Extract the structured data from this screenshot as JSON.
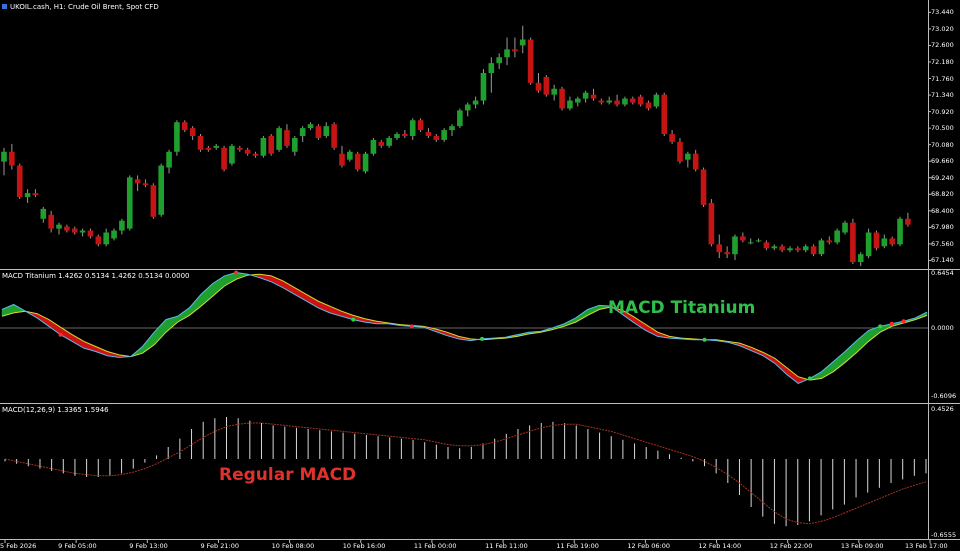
{
  "main": {
    "symbol_info": "UKOIL.cash, H1:  Crude Oil Brent, Spot CFD",
    "price_axis": [
      "73.440",
      "73.020",
      "72.600",
      "72.180",
      "71.760",
      "71.340",
      "70.920",
      "70.500",
      "70.080",
      "69.660",
      "69.240",
      "68.820",
      "68.400",
      "67.980",
      "67.560",
      "67.140"
    ],
    "ohlc": [
      {
        "o": 69.65,
        "h": 70.0,
        "l": 69.3,
        "c": 69.9
      },
      {
        "o": 69.9,
        "h": 70.1,
        "l": 69.45,
        "c": 69.55
      },
      {
        "o": 69.55,
        "h": 69.6,
        "l": 68.7,
        "c": 68.75
      },
      {
        "o": 68.75,
        "h": 68.95,
        "l": 68.6,
        "c": 68.85
      },
      {
        "o": 68.85,
        "h": 68.95,
        "l": 68.75,
        "c": 68.8
      },
      {
        "o": 68.2,
        "h": 68.5,
        "l": 68.1,
        "c": 68.45
      },
      {
        "o": 68.3,
        "h": 68.4,
        "l": 67.85,
        "c": 67.95
      },
      {
        "o": 67.95,
        "h": 68.1,
        "l": 67.8,
        "c": 68.05
      },
      {
        "o": 68.0,
        "h": 68.05,
        "l": 67.85,
        "c": 67.9
      },
      {
        "o": 67.95,
        "h": 68.0,
        "l": 67.8,
        "c": 67.85
      },
      {
        "o": 67.85,
        "h": 67.95,
        "l": 67.75,
        "c": 67.9
      },
      {
        "o": 67.9,
        "h": 67.95,
        "l": 67.7,
        "c": 67.75
      },
      {
        "o": 67.75,
        "h": 67.8,
        "l": 67.5,
        "c": 67.55
      },
      {
        "o": 67.55,
        "h": 67.95,
        "l": 67.5,
        "c": 67.85
      },
      {
        "o": 67.7,
        "h": 67.95,
        "l": 67.65,
        "c": 67.9
      },
      {
        "o": 67.9,
        "h": 68.2,
        "l": 67.8,
        "c": 68.15
      },
      {
        "o": 67.95,
        "h": 69.3,
        "l": 67.9,
        "c": 69.25
      },
      {
        "o": 69.2,
        "h": 69.3,
        "l": 68.9,
        "c": 69.1
      },
      {
        "o": 69.1,
        "h": 69.2,
        "l": 69.0,
        "c": 69.05
      },
      {
        "o": 69.05,
        "h": 69.1,
        "l": 68.2,
        "c": 68.25
      },
      {
        "o": 68.3,
        "h": 69.6,
        "l": 68.25,
        "c": 69.55
      },
      {
        "o": 69.5,
        "h": 69.95,
        "l": 69.35,
        "c": 69.9
      },
      {
        "o": 69.9,
        "h": 70.7,
        "l": 69.8,
        "c": 70.65
      },
      {
        "o": 70.65,
        "h": 70.7,
        "l": 70.4,
        "c": 70.45
      },
      {
        "o": 70.5,
        "h": 70.55,
        "l": 70.2,
        "c": 70.3
      },
      {
        "o": 70.3,
        "h": 70.35,
        "l": 69.9,
        "c": 69.95
      },
      {
        "o": 70.0,
        "h": 70.05,
        "l": 69.9,
        "c": 69.95
      },
      {
        "o": 70.0,
        "h": 70.1,
        "l": 69.95,
        "c": 70.05
      },
      {
        "o": 70.0,
        "h": 70.05,
        "l": 69.4,
        "c": 69.45
      },
      {
        "o": 69.6,
        "h": 70.1,
        "l": 69.55,
        "c": 70.05
      },
      {
        "o": 70.0,
        "h": 70.05,
        "l": 69.9,
        "c": 69.95
      },
      {
        "o": 69.95,
        "h": 70.0,
        "l": 69.8,
        "c": 69.85
      },
      {
        "o": 69.85,
        "h": 69.9,
        "l": 69.75,
        "c": 69.8
      },
      {
        "o": 69.8,
        "h": 70.3,
        "l": 69.75,
        "c": 70.25
      },
      {
        "o": 70.3,
        "h": 70.35,
        "l": 69.8,
        "c": 69.85
      },
      {
        "o": 69.95,
        "h": 70.55,
        "l": 69.9,
        "c": 70.5
      },
      {
        "o": 70.45,
        "h": 70.6,
        "l": 70.0,
        "c": 70.05
      },
      {
        "o": 69.9,
        "h": 70.3,
        "l": 69.8,
        "c": 70.25
      },
      {
        "o": 70.3,
        "h": 70.55,
        "l": 70.15,
        "c": 70.5
      },
      {
        "o": 70.5,
        "h": 70.65,
        "l": 70.45,
        "c": 70.6
      },
      {
        "o": 70.55,
        "h": 70.6,
        "l": 70.2,
        "c": 70.25
      },
      {
        "o": 70.3,
        "h": 70.65,
        "l": 70.25,
        "c": 70.55
      },
      {
        "o": 70.6,
        "h": 70.65,
        "l": 69.95,
        "c": 70.0
      },
      {
        "o": 69.85,
        "h": 70.05,
        "l": 69.5,
        "c": 69.55
      },
      {
        "o": 69.7,
        "h": 69.95,
        "l": 69.65,
        "c": 69.9
      },
      {
        "o": 69.85,
        "h": 69.9,
        "l": 69.4,
        "c": 69.45
      },
      {
        "o": 69.4,
        "h": 69.9,
        "l": 69.35,
        "c": 69.85
      },
      {
        "o": 69.85,
        "h": 70.25,
        "l": 69.8,
        "c": 70.2
      },
      {
        "o": 70.15,
        "h": 70.2,
        "l": 70.0,
        "c": 70.05
      },
      {
        "o": 70.05,
        "h": 70.3,
        "l": 70.0,
        "c": 70.25
      },
      {
        "o": 70.25,
        "h": 70.4,
        "l": 70.2,
        "c": 70.35
      },
      {
        "o": 70.35,
        "h": 70.45,
        "l": 70.25,
        "c": 70.3
      },
      {
        "o": 70.3,
        "h": 70.75,
        "l": 70.2,
        "c": 70.7
      },
      {
        "o": 70.7,
        "h": 70.75,
        "l": 70.4,
        "c": 70.45
      },
      {
        "o": 70.4,
        "h": 70.5,
        "l": 70.25,
        "c": 70.3
      },
      {
        "o": 70.3,
        "h": 70.35,
        "l": 70.15,
        "c": 70.2
      },
      {
        "o": 70.2,
        "h": 70.5,
        "l": 70.15,
        "c": 70.45
      },
      {
        "o": 70.45,
        "h": 70.6,
        "l": 70.3,
        "c": 70.55
      },
      {
        "o": 70.55,
        "h": 71.0,
        "l": 70.5,
        "c": 70.95
      },
      {
        "o": 70.95,
        "h": 71.15,
        "l": 70.8,
        "c": 71.1
      },
      {
        "o": 71.1,
        "h": 71.3,
        "l": 71.0,
        "c": 71.2
      },
      {
        "o": 71.2,
        "h": 72.0,
        "l": 71.1,
        "c": 71.9
      },
      {
        "o": 71.9,
        "h": 72.3,
        "l": 71.4,
        "c": 72.15
      },
      {
        "o": 72.15,
        "h": 72.4,
        "l": 72.0,
        "c": 72.3
      },
      {
        "o": 72.3,
        "h": 72.8,
        "l": 72.1,
        "c": 72.5
      },
      {
        "o": 72.5,
        "h": 72.8,
        "l": 72.3,
        "c": 72.45
      },
      {
        "o": 72.6,
        "h": 73.1,
        "l": 72.4,
        "c": 72.75
      },
      {
        "o": 72.75,
        "h": 72.8,
        "l": 71.6,
        "c": 71.65
      },
      {
        "o": 71.65,
        "h": 71.9,
        "l": 71.4,
        "c": 71.45
      },
      {
        "o": 71.8,
        "h": 71.85,
        "l": 71.3,
        "c": 71.35
      },
      {
        "o": 71.35,
        "h": 71.6,
        "l": 71.2,
        "c": 71.5
      },
      {
        "o": 71.5,
        "h": 71.55,
        "l": 70.95,
        "c": 71.0
      },
      {
        "o": 71.0,
        "h": 71.3,
        "l": 70.95,
        "c": 71.2
      },
      {
        "o": 71.15,
        "h": 71.3,
        "l": 71.05,
        "c": 71.25
      },
      {
        "o": 71.25,
        "h": 71.45,
        "l": 71.15,
        "c": 71.4
      },
      {
        "o": 71.35,
        "h": 71.5,
        "l": 71.2,
        "c": 71.25
      },
      {
        "o": 71.2,
        "h": 71.25,
        "l": 71.1,
        "c": 71.15
      },
      {
        "o": 71.15,
        "h": 71.3,
        "l": 71.1,
        "c": 71.2
      },
      {
        "o": 71.2,
        "h": 71.35,
        "l": 71.05,
        "c": 71.1
      },
      {
        "o": 71.1,
        "h": 71.3,
        "l": 71.05,
        "c": 71.25
      },
      {
        "o": 71.25,
        "h": 71.3,
        "l": 71.1,
        "c": 71.15
      },
      {
        "o": 71.3,
        "h": 71.35,
        "l": 71.05,
        "c": 71.1
      },
      {
        "o": 71.15,
        "h": 71.2,
        "l": 70.95,
        "c": 71.0
      },
      {
        "o": 71.05,
        "h": 71.4,
        "l": 71.0,
        "c": 71.35
      },
      {
        "o": 71.35,
        "h": 71.4,
        "l": 70.3,
        "c": 70.35
      },
      {
        "o": 70.35,
        "h": 70.45,
        "l": 70.1,
        "c": 70.15
      },
      {
        "o": 70.15,
        "h": 70.25,
        "l": 69.6,
        "c": 69.65
      },
      {
        "o": 69.7,
        "h": 69.9,
        "l": 69.5,
        "c": 69.85
      },
      {
        "o": 69.85,
        "h": 69.95,
        "l": 69.4,
        "c": 69.45
      },
      {
        "o": 69.45,
        "h": 69.5,
        "l": 68.5,
        "c": 68.55
      },
      {
        "o": 68.6,
        "h": 68.7,
        "l": 67.5,
        "c": 67.55
      },
      {
        "o": 67.55,
        "h": 67.8,
        "l": 67.2,
        "c": 67.35
      },
      {
        "o": 67.35,
        "h": 67.5,
        "l": 67.2,
        "c": 67.3
      },
      {
        "o": 67.3,
        "h": 67.8,
        "l": 67.15,
        "c": 67.75
      },
      {
        "o": 67.75,
        "h": 67.85,
        "l": 67.6,
        "c": 67.65
      },
      {
        "o": 67.6,
        "h": 67.7,
        "l": 67.55,
        "c": 67.6
      },
      {
        "o": 67.65,
        "h": 67.7,
        "l": 67.6,
        "c": 67.65
      },
      {
        "o": 67.6,
        "h": 67.65,
        "l": 67.4,
        "c": 67.45
      },
      {
        "o": 67.45,
        "h": 67.55,
        "l": 67.4,
        "c": 67.5
      },
      {
        "o": 67.5,
        "h": 67.55,
        "l": 67.35,
        "c": 67.4
      },
      {
        "o": 67.4,
        "h": 67.5,
        "l": 67.35,
        "c": 67.45
      },
      {
        "o": 67.45,
        "h": 67.5,
        "l": 67.35,
        "c": 67.4
      },
      {
        "o": 67.4,
        "h": 67.55,
        "l": 67.35,
        "c": 67.5
      },
      {
        "o": 67.5,
        "h": 67.55,
        "l": 67.25,
        "c": 67.3
      },
      {
        "o": 67.3,
        "h": 67.7,
        "l": 67.25,
        "c": 67.65
      },
      {
        "o": 67.65,
        "h": 67.75,
        "l": 67.55,
        "c": 67.6
      },
      {
        "o": 67.6,
        "h": 67.95,
        "l": 67.55,
        "c": 67.9
      },
      {
        "o": 67.85,
        "h": 68.15,
        "l": 67.8,
        "c": 68.1
      },
      {
        "o": 68.1,
        "h": 68.2,
        "l": 67.05,
        "c": 67.1
      },
      {
        "o": 67.1,
        "h": 67.35,
        "l": 67.0,
        "c": 67.3
      },
      {
        "o": 67.25,
        "h": 67.95,
        "l": 67.2,
        "c": 67.85
      },
      {
        "o": 67.85,
        "h": 67.9,
        "l": 67.4,
        "c": 67.45
      },
      {
        "o": 67.5,
        "h": 67.8,
        "l": 67.45,
        "c": 67.7
      },
      {
        "o": 67.7,
        "h": 67.75,
        "l": 67.5,
        "c": 67.55
      },
      {
        "o": 67.55,
        "h": 68.25,
        "l": 67.5,
        "c": 68.2
      },
      {
        "o": 68.2,
        "h": 68.35,
        "l": 68.0,
        "c": 68.05
      }
    ]
  },
  "titanium": {
    "header": "MACD Titanium 1.4262 0.5134 1.4262 0.5134 0.0000",
    "axis": [
      "0.6454",
      "0.0000",
      "-0.6096"
    ],
    "annotation": "MACD Titanium",
    "colors": {
      "bull": "#1fa02e",
      "bear": "#cc1212",
      "fast": "#5ab8e8",
      "slow": "#d8d830"
    },
    "fast": [
      0.22,
      0.28,
      0.2,
      0.12,
      0.02,
      -0.08,
      -0.16,
      -0.24,
      -0.28,
      -0.33,
      -0.35,
      -0.34,
      -0.22,
      -0.05,
      0.1,
      0.14,
      0.24,
      0.4,
      0.53,
      0.62,
      0.66,
      0.64,
      0.6,
      0.55,
      0.48,
      0.4,
      0.32,
      0.24,
      0.18,
      0.14,
      0.1,
      0.07,
      0.05,
      0.05,
      0.03,
      0.02,
      0.01,
      -0.04,
      -0.09,
      -0.13,
      -0.15,
      -0.13,
      -0.12,
      -0.11,
      -0.08,
      -0.05,
      -0.04,
      0.0,
      0.05,
      0.12,
      0.22,
      0.27,
      0.26,
      0.16,
      0.06,
      -0.03,
      -0.1,
      -0.12,
      -0.13,
      -0.14,
      -0.14,
      -0.15,
      -0.17,
      -0.21,
      -0.27,
      -0.33,
      -0.42,
      -0.55,
      -0.66,
      -0.6,
      -0.52,
      -0.4,
      -0.28,
      -0.15,
      -0.03,
      0.02,
      0.05,
      0.08,
      0.12,
      0.19
    ],
    "slow": [
      0.14,
      0.18,
      0.2,
      0.17,
      0.1,
      0.01,
      -0.08,
      -0.16,
      -0.22,
      -0.28,
      -0.32,
      -0.34,
      -0.3,
      -0.2,
      -0.05,
      0.07,
      0.15,
      0.26,
      0.38,
      0.5,
      0.58,
      0.63,
      0.64,
      0.62,
      0.56,
      0.48,
      0.4,
      0.32,
      0.26,
      0.2,
      0.15,
      0.11,
      0.08,
      0.06,
      0.04,
      0.03,
      0.02,
      -0.01,
      -0.05,
      -0.1,
      -0.13,
      -0.14,
      -0.13,
      -0.12,
      -0.1,
      -0.07,
      -0.05,
      -0.02,
      0.02,
      0.07,
      0.15,
      0.22,
      0.25,
      0.21,
      0.13,
      0.04,
      -0.05,
      -0.1,
      -0.12,
      -0.13,
      -0.14,
      -0.14,
      -0.16,
      -0.18,
      -0.23,
      -0.29,
      -0.36,
      -0.47,
      -0.58,
      -0.62,
      -0.6,
      -0.52,
      -0.41,
      -0.29,
      -0.16,
      -0.05,
      0.02,
      0.06,
      0.1,
      0.15
    ],
    "dots": [
      {
        "i": 5,
        "color": "red"
      },
      {
        "i": 20,
        "color": "red"
      },
      {
        "i": 30,
        "color": "green"
      },
      {
        "i": 35,
        "color": "red"
      },
      {
        "i": 41,
        "color": "green"
      },
      {
        "i": 52,
        "color": "red"
      },
      {
        "i": 60,
        "color": "green"
      },
      {
        "i": 69,
        "color": "green"
      },
      {
        "i": 75,
        "color": "green"
      },
      {
        "i": 76,
        "color": "red"
      },
      {
        "i": 77,
        "color": "red"
      }
    ]
  },
  "macd": {
    "header": "MACD(12,26,9) 1.3365 1.5946",
    "axis": [
      "0.4526",
      "-0.6555"
    ],
    "annotation": "Regular MACD",
    "colors": {
      "hist": "#d8d8d8",
      "signal": "#a3321f"
    },
    "hist": [
      -0.02,
      -0.04,
      -0.06,
      -0.08,
      -0.1,
      -0.12,
      -0.14,
      -0.15,
      -0.15,
      -0.14,
      -0.12,
      -0.08,
      -0.03,
      0.03,
      0.1,
      0.17,
      0.25,
      0.31,
      0.34,
      0.35,
      0.34,
      0.32,
      0.3,
      0.28,
      0.27,
      0.26,
      0.25,
      0.24,
      0.23,
      0.22,
      0.21,
      0.2,
      0.19,
      0.18,
      0.17,
      0.16,
      0.14,
      0.12,
      0.1,
      0.09,
      0.1,
      0.13,
      0.17,
      0.21,
      0.25,
      0.28,
      0.3,
      0.31,
      0.3,
      0.28,
      0.25,
      0.22,
      0.19,
      0.16,
      0.13,
      0.1,
      0.07,
      0.04,
      0.01,
      -0.02,
      -0.06,
      -0.12,
      -0.2,
      -0.3,
      -0.4,
      -0.48,
      -0.54,
      -0.56,
      -0.55,
      -0.52,
      -0.47,
      -0.42,
      -0.38,
      -0.32,
      -0.28,
      -0.24,
      -0.2,
      -0.17,
      -0.14,
      -0.12
    ],
    "signal": [
      0.0,
      -0.02,
      -0.04,
      -0.06,
      -0.08,
      -0.1,
      -0.12,
      -0.13,
      -0.14,
      -0.14,
      -0.13,
      -0.11,
      -0.08,
      -0.04,
      0.01,
      0.06,
      0.12,
      0.18,
      0.23,
      0.27,
      0.29,
      0.3,
      0.3,
      0.29,
      0.28,
      0.27,
      0.26,
      0.25,
      0.24,
      0.23,
      0.22,
      0.21,
      0.2,
      0.19,
      0.18,
      0.17,
      0.16,
      0.14,
      0.12,
      0.11,
      0.11,
      0.12,
      0.14,
      0.17,
      0.2,
      0.23,
      0.26,
      0.28,
      0.29,
      0.29,
      0.27,
      0.25,
      0.23,
      0.2,
      0.17,
      0.14,
      0.11,
      0.08,
      0.05,
      0.02,
      -0.02,
      -0.07,
      -0.13,
      -0.2,
      -0.28,
      -0.36,
      -0.44,
      -0.5,
      -0.53,
      -0.54,
      -0.52,
      -0.49,
      -0.45,
      -0.41,
      -0.37,
      -0.33,
      -0.29,
      -0.25,
      -0.22,
      -0.19
    ]
  },
  "time_axis": [
    "5 Feb 2026",
    "9 Feb 05:00",
    "9 Feb 13:00",
    "9 Feb 21:00",
    "10 Feb 08:00",
    "10 Feb 16:00",
    "11 Feb 00:00",
    "11 Feb 11:00",
    "11 Feb 19:00",
    "12 Feb 06:00",
    "12 Feb 14:00",
    "12 Feb 22:00",
    "13 Feb 09:00",
    "13 Feb 17:00"
  ]
}
